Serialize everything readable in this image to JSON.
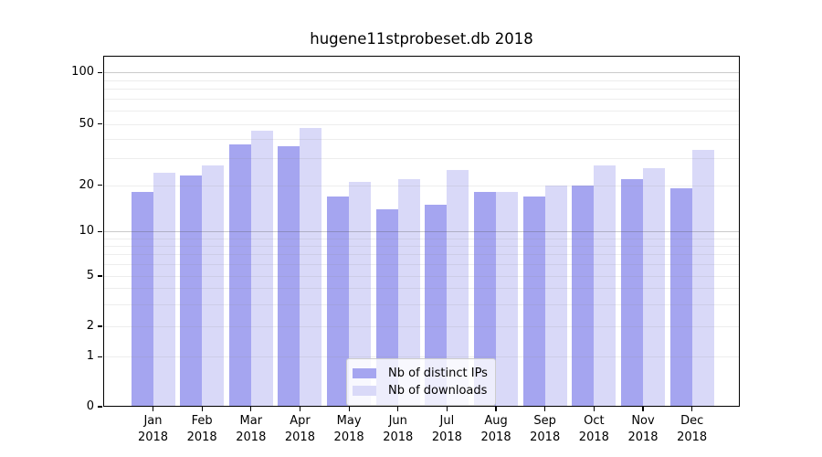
{
  "figure": {
    "title": "hugene11stprobeset.db 2018"
  },
  "chart_data": {
    "type": "bar",
    "title": "hugene11stprobeset.db 2018",
    "x_categories": [
      "Jan 2018",
      "Feb 2018",
      "Mar 2018",
      "Apr 2018",
      "May 2018",
      "Jun 2018",
      "Jul 2018",
      "Aug 2018",
      "Sep 2018",
      "Oct 2018",
      "Nov 2018",
      "Dec 2018"
    ],
    "x_tick_months": [
      "Jan",
      "Feb",
      "Mar",
      "Apr",
      "May",
      "Jun",
      "Jul",
      "Aug",
      "Sep",
      "Oct",
      "Nov",
      "Dec"
    ],
    "x_tick_year": "2018",
    "series": [
      {
        "name": "Nb of distinct IPs",
        "color": "#a5a5f0",
        "values": [
          18,
          23,
          37,
          36,
          17,
          14,
          15,
          18,
          17,
          20,
          22,
          19
        ]
      },
      {
        "name": "Nb of downloads",
        "color": "#d9d9f8",
        "values": [
          24,
          27,
          45,
          47,
          21,
          22,
          25,
          18,
          20,
          27,
          26,
          34
        ]
      }
    ],
    "y_axis": {
      "scale": "log (0 pinned at baseline)",
      "tick_labels": [
        100,
        50,
        20,
        10,
        5,
        2,
        1,
        0
      ],
      "major_gridlines": [
        100,
        10
      ],
      "minor_gridlines": [
        1,
        2,
        3,
        4,
        5,
        6,
        7,
        8,
        9,
        20,
        30,
        40,
        50,
        60,
        70,
        80,
        90
      ],
      "ylim": [
        0,
        115
      ]
    },
    "legend": {
      "position": "inside lower center",
      "entries": [
        "Nb of distinct IPs",
        "Nb of downloads"
      ]
    },
    "grid": "horizontal"
  }
}
